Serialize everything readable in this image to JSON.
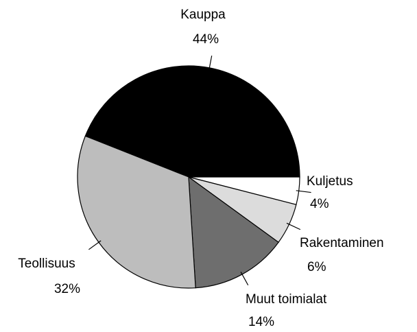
{
  "chart_data": {
    "type": "pie",
    "categories": [
      "Kauppa",
      "Kuljetus",
      "Rakentaminen",
      "Muut toimialat",
      "Teollisuus"
    ],
    "values": [
      44,
      4,
      6,
      14,
      32
    ],
    "value_labels": [
      "44%",
      "4%",
      "6%",
      "14%",
      "32%"
    ],
    "colors": [
      "#000000",
      "#ffffff",
      "#dcdcdc",
      "#6e6e6e",
      "#bdbdbd"
    ]
  }
}
